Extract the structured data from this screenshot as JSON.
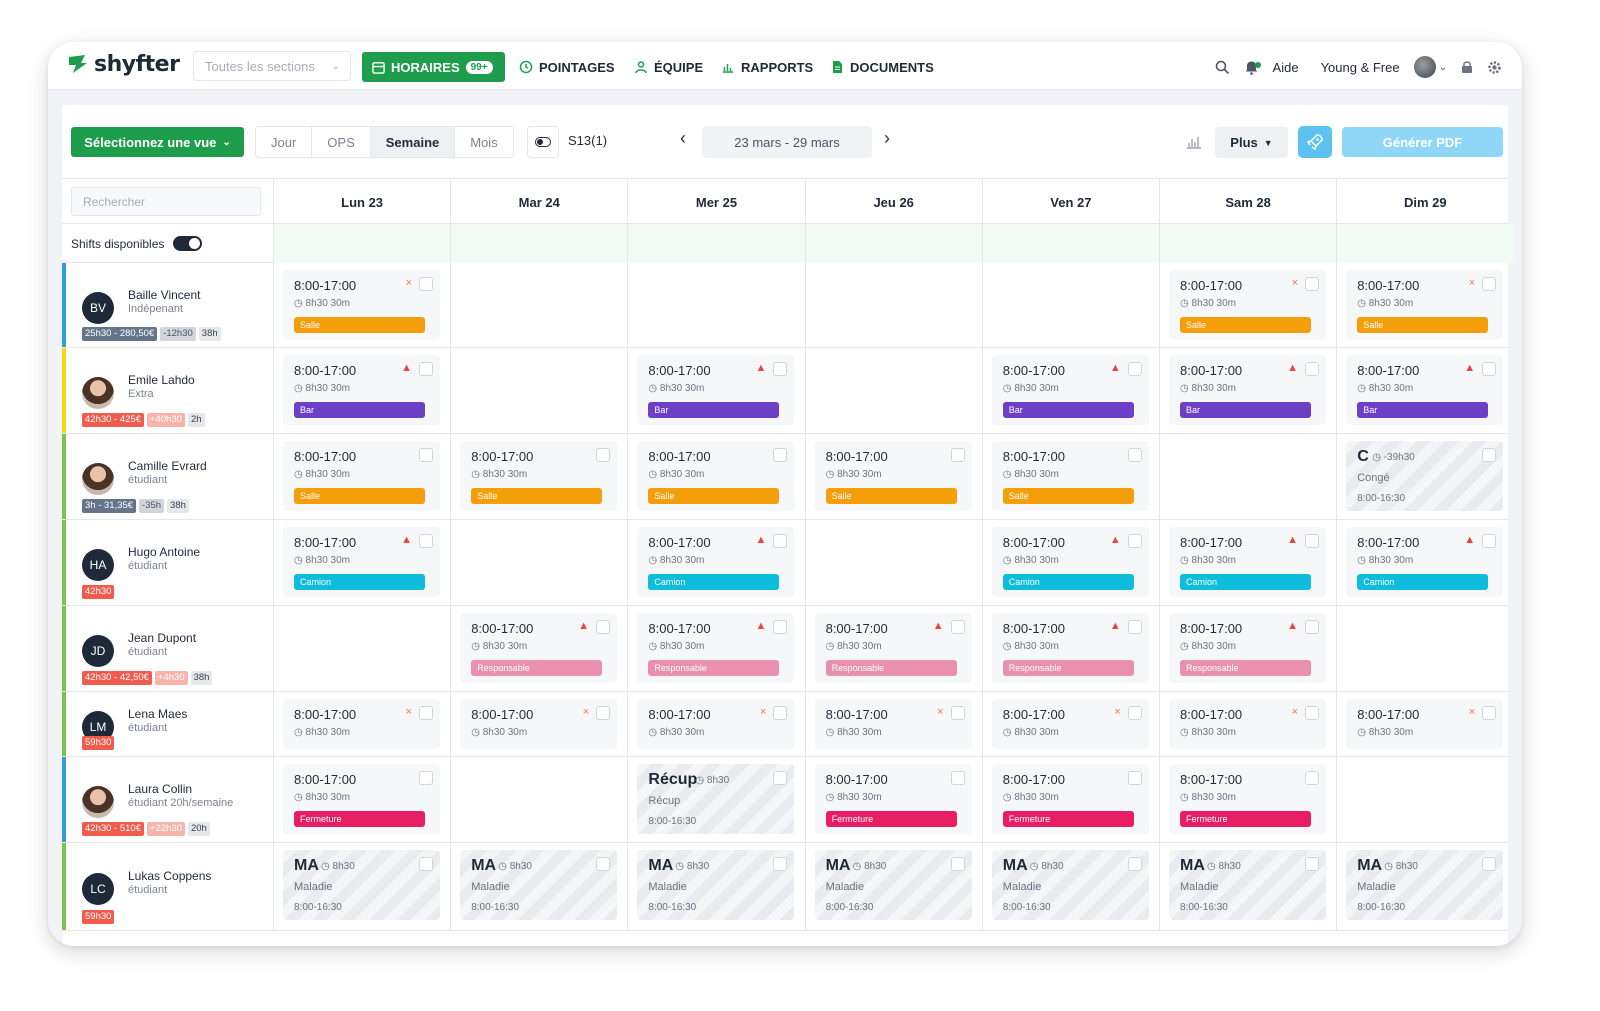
{
  "nav": {
    "logo": "shyfter",
    "section_select": "Toutes les sections",
    "items": [
      {
        "label": "HORAIRES",
        "badge": "99+"
      },
      {
        "label": "POINTAGES"
      },
      {
        "label": "ÉQUIPE"
      },
      {
        "label": "RAPPORTS"
      },
      {
        "label": "DOCUMENTS"
      }
    ],
    "help": "Aide",
    "company": "Young & Free"
  },
  "toolbar": {
    "view_select": "Sélectionnez une vue",
    "modes": [
      "Jour",
      "OPS",
      "Semaine",
      "Mois"
    ],
    "active_mode": "Semaine",
    "week_label": "S13(1)",
    "date_range": "23 mars - 29 mars",
    "more": "Plus",
    "pdf": "Générer PDF"
  },
  "grid": {
    "search_placeholder": "Rechercher",
    "available_label": "Shifts disponibles",
    "days": [
      "Lun 23",
      "Mar 24",
      "Mer 25",
      "Jeu 26",
      "Ven 27",
      "Sam 28",
      "Dim 29"
    ]
  },
  "tag_colors": {
    "Salle": "#f59e0b",
    "Bar": "#6d3fc7",
    "Camion": "#0ebcdc",
    "Responsable": "#e890ad",
    "Fermeture": "#e81e63"
  },
  "employees": [
    {
      "initials": "BV",
      "name": "Baille Vincent",
      "role": "Indépenant",
      "bar": "#2f9de0",
      "stats": [
        {
          "t": "25h30 - 280,50€",
          "c": "s-slate"
        },
        {
          "t": "-12h30",
          "c": "s-gray"
        },
        {
          "t": "38h",
          "c": "s-light"
        }
      ],
      "shifts": [
        {
          "d": 0,
          "time": "8:00-17:00",
          "info": "8h30 30m",
          "mark": "x",
          "tag": "Salle"
        },
        {
          "d": 5,
          "time": "8:00-17:00",
          "info": "8h30 30m",
          "mark": "x",
          "tag": "Salle"
        },
        {
          "d": 6,
          "time": "8:00-17:00",
          "info": "8h30 30m",
          "mark": "x",
          "tag": "Salle"
        }
      ]
    },
    {
      "initials": "EL",
      "photo": true,
      "name": "Emile Lahdo",
      "role": "Extra",
      "bar": "#f5d90a",
      "stats": [
        {
          "t": "42h30 - 425€",
          "c": "s-red"
        },
        {
          "t": "+40h30",
          "c": "s-pink"
        },
        {
          "t": "2h",
          "c": "s-light"
        }
      ],
      "shifts": [
        {
          "d": 0,
          "time": "8:00-17:00",
          "info": "8h30 30m",
          "mark": "warn",
          "tag": "Bar"
        },
        {
          "d": 2,
          "time": "8:00-17:00",
          "info": "8h30 30m",
          "mark": "warn",
          "tag": "Bar"
        },
        {
          "d": 4,
          "time": "8:00-17:00",
          "info": "8h30 30m",
          "mark": "warn",
          "tag": "Bar"
        },
        {
          "d": 5,
          "time": "8:00-17:00",
          "info": "8h30 30m",
          "mark": "warn",
          "tag": "Bar"
        },
        {
          "d": 6,
          "time": "8:00-17:00",
          "info": "8h30 30m",
          "mark": "warn",
          "tag": "Bar"
        }
      ]
    },
    {
      "initials": "CE",
      "photo": true,
      "name": "Camille Evrard",
      "role": "étudiant",
      "bar": "#7ec24a",
      "stats": [
        {
          "t": "3h - 31,35€",
          "c": "s-slate"
        },
        {
          "t": "-35h",
          "c": "s-gray"
        },
        {
          "t": "38h",
          "c": "s-light"
        }
      ],
      "shifts": [
        {
          "d": 0,
          "time": "8:00-17:00",
          "info": "8h30 30m",
          "tag": "Salle"
        },
        {
          "d": 1,
          "time": "8:00-17:00",
          "info": "8h30 30m",
          "tag": "Salle"
        },
        {
          "d": 2,
          "time": "8:00-17:00",
          "info": "8h30 30m",
          "tag": "Salle"
        },
        {
          "d": 3,
          "time": "8:00-17:00",
          "info": "8h30 30m",
          "tag": "Salle"
        },
        {
          "d": 4,
          "time": "8:00-17:00",
          "info": "8h30 30m",
          "tag": "Salle"
        },
        {
          "d": 6,
          "abs": true,
          "code": "C",
          "hours": "-39h30",
          "type": "Congé",
          "range": "8:00-16:30"
        }
      ]
    },
    {
      "initials": "HA",
      "name": "Hugo Antoine",
      "role": "étudiant",
      "bar": "#7ec24a",
      "stats": [
        {
          "t": "42h30",
          "c": "s-red"
        }
      ],
      "shifts": [
        {
          "d": 0,
          "time": "8:00-17:00",
          "info": "8h30 30m",
          "mark": "warn",
          "tag": "Camion"
        },
        {
          "d": 2,
          "time": "8:00-17:00",
          "info": "8h30 30m",
          "mark": "warn",
          "tag": "Camion"
        },
        {
          "d": 4,
          "time": "8:00-17:00",
          "info": "8h30 30m",
          "mark": "warn",
          "tag": "Camion"
        },
        {
          "d": 5,
          "time": "8:00-17:00",
          "info": "8h30 30m",
          "mark": "warn",
          "tag": "Camion"
        },
        {
          "d": 6,
          "time": "8:00-17:00",
          "info": "8h30 30m",
          "mark": "warn",
          "tag": "Camion"
        }
      ]
    },
    {
      "initials": "JD",
      "name": "Jean Dupont",
      "role": "étudiant",
      "bar": "#7ec24a",
      "stats": [
        {
          "t": "42h30 - 42,50€",
          "c": "s-red"
        },
        {
          "t": "+4h30",
          "c": "s-pink"
        },
        {
          "t": "38h",
          "c": "s-light"
        }
      ],
      "shifts": [
        {
          "d": 1,
          "time": "8:00-17:00",
          "info": "8h30 30m",
          "mark": "warn",
          "tag": "Responsable"
        },
        {
          "d": 2,
          "time": "8:00-17:00",
          "info": "8h30 30m",
          "mark": "warn",
          "tag": "Responsable"
        },
        {
          "d": 3,
          "time": "8:00-17:00",
          "info": "8h30 30m",
          "mark": "warn",
          "tag": "Responsable"
        },
        {
          "d": 4,
          "time": "8:00-17:00",
          "info": "8h30 30m",
          "mark": "warn",
          "tag": "Responsable"
        },
        {
          "d": 5,
          "time": "8:00-17:00",
          "info": "8h30 30m",
          "mark": "warn",
          "tag": "Responsable"
        }
      ]
    },
    {
      "initials": "LM",
      "name": "Lena Maes",
      "role": "étudiant",
      "bar": "#7ec24a",
      "stats": [
        {
          "t": "59h30",
          "c": "s-red"
        }
      ],
      "shifts": [
        {
          "d": 0,
          "time": "8:00-17:00",
          "info": "8h30 30m",
          "mark": "x"
        },
        {
          "d": 1,
          "time": "8:00-17:00",
          "info": "8h30 30m",
          "mark": "x"
        },
        {
          "d": 2,
          "time": "8:00-17:00",
          "info": "8h30 30m",
          "mark": "x"
        },
        {
          "d": 3,
          "time": "8:00-17:00",
          "info": "8h30 30m",
          "mark": "x"
        },
        {
          "d": 4,
          "time": "8:00-17:00",
          "info": "8h30 30m",
          "mark": "x"
        },
        {
          "d": 5,
          "time": "8:00-17:00",
          "info": "8h30 30m",
          "mark": "x"
        },
        {
          "d": 6,
          "time": "8:00-17:00",
          "info": "8h30 30m",
          "mark": "x"
        }
      ]
    },
    {
      "initials": "LC",
      "photo": true,
      "name": "Laura Collin",
      "role": "étudiant 20h/semaine",
      "bar": "#2f9de0",
      "stats": [
        {
          "t": "42h30 - 510€",
          "c": "s-red"
        },
        {
          "t": "+22h30",
          "c": "s-pink"
        },
        {
          "t": "20h",
          "c": "s-light"
        }
      ],
      "shifts": [
        {
          "d": 0,
          "time": "8:00-17:00",
          "info": "8h30 30m",
          "tag": "Fermeture"
        },
        {
          "d": 2,
          "abs": true,
          "code": "Récup",
          "hours": "8h30",
          "type": "Récup",
          "range": "8:00-16:30"
        },
        {
          "d": 3,
          "time": "8:00-17:00",
          "info": "8h30 30m",
          "tag": "Fermeture"
        },
        {
          "d": 4,
          "time": "8:00-17:00",
          "info": "8h30 30m",
          "tag": "Fermeture"
        },
        {
          "d": 5,
          "time": "8:00-17:00",
          "info": "8h30 30m",
          "tag": "Fermeture"
        }
      ]
    },
    {
      "initials": "LC",
      "name": "Lukas Coppens",
      "role": "étudiant",
      "bar": "#7ec24a",
      "stats": [
        {
          "t": "59h30",
          "c": "s-red"
        }
      ],
      "shifts": [
        {
          "d": 0,
          "abs": true,
          "code": "MA",
          "hours": "8h30",
          "type": "Maladie",
          "range": "8:00-16:30"
        },
        {
          "d": 1,
          "abs": true,
          "code": "MA",
          "hours": "8h30",
          "type": "Maladie",
          "range": "8:00-16:30"
        },
        {
          "d": 2,
          "abs": true,
          "code": "MA",
          "hours": "8h30",
          "type": "Maladie",
          "range": "8:00-16:30"
        },
        {
          "d": 3,
          "abs": true,
          "code": "MA",
          "hours": "8h30",
          "type": "Maladie",
          "range": "8:00-16:30"
        },
        {
          "d": 4,
          "abs": true,
          "code": "MA",
          "hours": "8h30",
          "type": "Maladie",
          "range": "8:00-16:30"
        },
        {
          "d": 5,
          "abs": true,
          "code": "MA",
          "hours": "8h30",
          "type": "Maladie",
          "range": "8:00-16:30"
        },
        {
          "d": 6,
          "abs": true,
          "code": "MA",
          "hours": "8h30",
          "type": "Maladie",
          "range": "8:00-16:30"
        }
      ]
    }
  ]
}
